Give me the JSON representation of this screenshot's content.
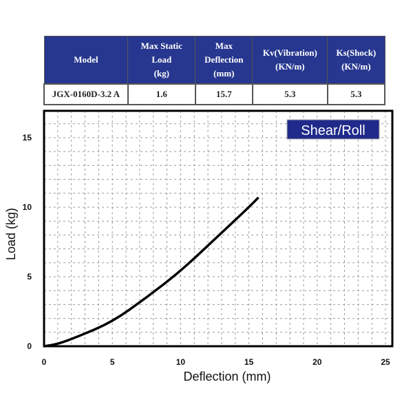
{
  "table": {
    "headers": [
      "Model",
      "Max Static Load (kg)",
      "Max Deflection (mm)",
      "Kv(Vibration) (KN/m)",
      "Ks(Shock) (KN/m)"
    ],
    "header_lines": [
      [
        "Model"
      ],
      [
        "Max Static",
        "Load",
        "(kg)"
      ],
      [
        "Max",
        "Deflection",
        "(mm)"
      ],
      [
        "Kv(Vibration)",
        "(KN/m)"
      ],
      [
        "Ks(Shock)",
        "(KN/m)"
      ]
    ],
    "rows": [
      [
        "JGX-0160D-3.2 A",
        "1.6",
        "15.7",
        "5.3",
        "5.3"
      ]
    ],
    "header_color": "#27378f"
  },
  "chart_data": {
    "type": "line",
    "badge": "Shear/Roll",
    "badge_color": "#1f2a8a",
    "xlabel": "Deflection (mm)",
    "ylabel": "Load (kg)",
    "xlim": [
      0,
      25
    ],
    "ylim": [
      0,
      16.9
    ],
    "xticks": [
      "0",
      "5",
      "10",
      "15",
      "20",
      "25"
    ],
    "yticks": [
      "0",
      "5",
      "10",
      "15"
    ],
    "grid": true,
    "series": [
      {
        "x": [
          0,
          1,
          2.5,
          5,
          7.5,
          10,
          12.5,
          15,
          15.7
        ],
        "y": [
          0,
          0.15,
          0.7,
          1.75,
          3.5,
          5.4,
          7.7,
          10.0,
          10.7
        ],
        "color": "#000000"
      }
    ]
  }
}
